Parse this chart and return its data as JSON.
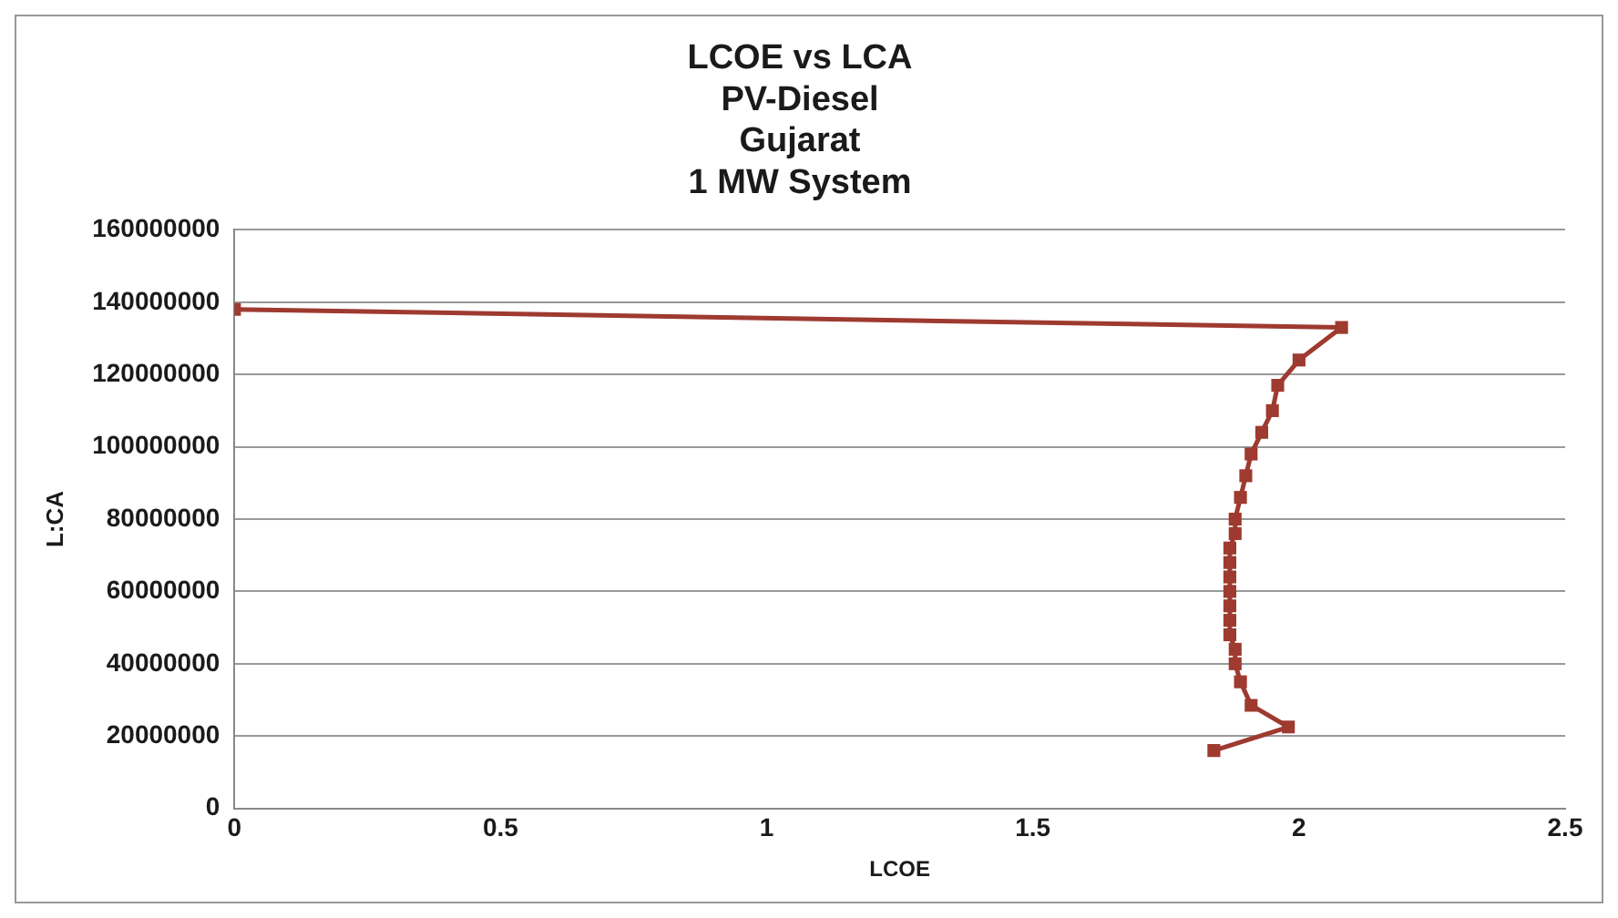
{
  "chart_data": {
    "type": "line",
    "title": "LCOE vs LCA\nPV-Diesel\nGujarat\n1 MW System",
    "xlabel": "LCOE",
    "ylabel": "L:CA",
    "x": [
      1.84,
      1.98,
      1.91,
      1.89,
      1.88,
      1.88,
      1.87,
      1.87,
      1.87,
      1.87,
      1.87,
      1.87,
      1.87,
      1.88,
      1.88,
      1.89,
      1.9,
      1.91,
      1.93,
      1.95,
      1.96,
      2.0,
      2.08,
      0
    ],
    "series": [
      {
        "color": "#9e3a30",
        "values": [
          16000000,
          22500000,
          28500000,
          35000000,
          40000000,
          44000000,
          48000000,
          52000000,
          56000000,
          60000000,
          64000000,
          68000000,
          72000000,
          76000000,
          80000000,
          86000000,
          92000000,
          98000000,
          104000000,
          110000000,
          117000000,
          124000000,
          133000000,
          138000000
        ]
      }
    ],
    "xlim": [
      0,
      2.5
    ],
    "xticks": [
      0,
      0.5,
      1,
      1.5,
      2,
      2.5
    ],
    "ylim": [
      0,
      160000000
    ],
    "yticks": [
      0,
      20000000,
      40000000,
      60000000,
      80000000,
      100000000,
      120000000,
      140000000,
      160000000
    ],
    "grid": "y",
    "legend": false,
    "marker": "square",
    "line_style": "solid"
  }
}
